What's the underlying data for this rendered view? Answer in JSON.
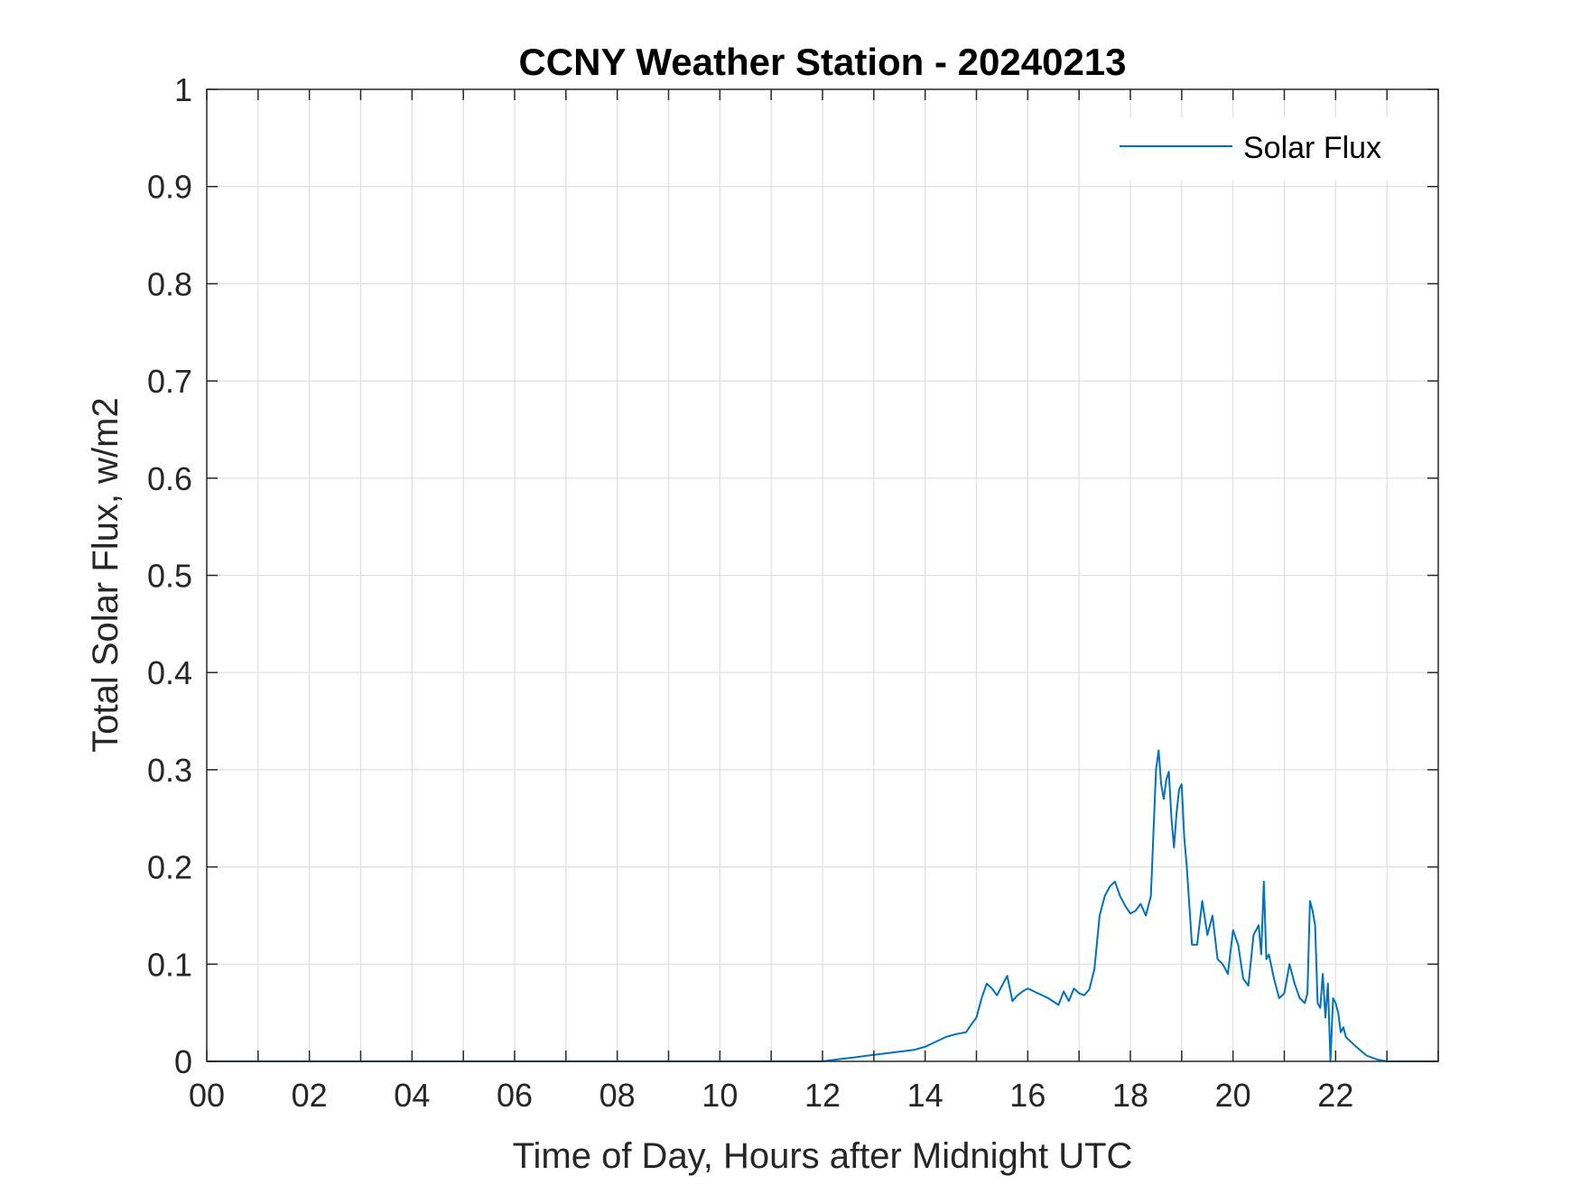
{
  "colors": {
    "series": "#0072BD",
    "grid": "#dfdfdf",
    "axis": "#262626",
    "background": "#ffffff"
  },
  "chart_data": {
    "type": "line",
    "title": "CCNY Weather Station - 20240213",
    "xlabel": "Time of Day, Hours after Midnight UTC",
    "ylabel": "Total Solar Flux, w/m2",
    "xlim": [
      0,
      24
    ],
    "ylim": [
      0,
      1
    ],
    "xticks": [
      0,
      2,
      4,
      6,
      8,
      10,
      12,
      14,
      16,
      18,
      20,
      22
    ],
    "xtick_labels": [
      "00",
      "02",
      "04",
      "06",
      "08",
      "10",
      "12",
      "14",
      "16",
      "18",
      "20",
      "22"
    ],
    "yticks": [
      0,
      0.1,
      0.2,
      0.3,
      0.4,
      0.5,
      0.6,
      0.7,
      0.8,
      0.9,
      1
    ],
    "ytick_labels": [
      "0",
      "0.1",
      "0.2",
      "0.3",
      "0.4",
      "0.5",
      "0.6",
      "0.7",
      "0.8",
      "0.9",
      "1"
    ],
    "grid": true,
    "legend_position": "top-right",
    "series": [
      {
        "name": "Solar Flux",
        "x": [
          0,
          11.5,
          12.0,
          12.3,
          12.6,
          12.9,
          13.2,
          13.5,
          13.8,
          14.0,
          14.2,
          14.4,
          14.6,
          14.8,
          14.9,
          15.0,
          15.1,
          15.2,
          15.3,
          15.4,
          15.5,
          15.6,
          15.7,
          15.8,
          15.9,
          16.0,
          16.2,
          16.4,
          16.6,
          16.7,
          16.8,
          16.9,
          17.0,
          17.1,
          17.2,
          17.3,
          17.4,
          17.5,
          17.6,
          17.7,
          17.8,
          17.9,
          18.0,
          18.1,
          18.2,
          18.3,
          18.4,
          18.5,
          18.55,
          18.6,
          18.65,
          18.7,
          18.75,
          18.8,
          18.85,
          18.9,
          18.95,
          19.0,
          19.05,
          19.1,
          19.2,
          19.3,
          19.4,
          19.5,
          19.6,
          19.7,
          19.8,
          19.9,
          20.0,
          20.1,
          20.2,
          20.3,
          20.4,
          20.5,
          20.55,
          20.6,
          20.65,
          20.7,
          20.8,
          20.9,
          21.0,
          21.1,
          21.2,
          21.3,
          21.4,
          21.45,
          21.5,
          21.55,
          21.6,
          21.65,
          21.7,
          21.75,
          21.8,
          21.85,
          21.9,
          21.95,
          22.0,
          22.05,
          22.1,
          22.15,
          22.2,
          22.4,
          22.6,
          22.8,
          23.0,
          24.0
        ],
        "y": [
          0,
          0,
          0,
          0.002,
          0.004,
          0.006,
          0.008,
          0.01,
          0.012,
          0.015,
          0.02,
          0.025,
          0.028,
          0.03,
          0.038,
          0.045,
          0.065,
          0.08,
          0.075,
          0.068,
          0.078,
          0.088,
          0.062,
          0.068,
          0.072,
          0.075,
          0.07,
          0.065,
          0.058,
          0.072,
          0.062,
          0.075,
          0.07,
          0.068,
          0.074,
          0.095,
          0.15,
          0.17,
          0.18,
          0.185,
          0.17,
          0.16,
          0.152,
          0.155,
          0.162,
          0.15,
          0.17,
          0.3,
          0.32,
          0.285,
          0.27,
          0.29,
          0.298,
          0.25,
          0.22,
          0.255,
          0.28,
          0.285,
          0.23,
          0.2,
          0.12,
          0.12,
          0.165,
          0.13,
          0.15,
          0.105,
          0.1,
          0.09,
          0.135,
          0.12,
          0.085,
          0.078,
          0.13,
          0.14,
          0.11,
          0.185,
          0.105,
          0.11,
          0.085,
          0.065,
          0.07,
          0.1,
          0.08,
          0.065,
          0.06,
          0.07,
          0.165,
          0.155,
          0.14,
          0.06,
          0.055,
          0.09,
          0.045,
          0.08,
          0.0,
          0.065,
          0.06,
          0.05,
          0.03,
          0.035,
          0.025,
          0.015,
          0.006,
          0.002,
          0,
          0
        ]
      }
    ]
  }
}
